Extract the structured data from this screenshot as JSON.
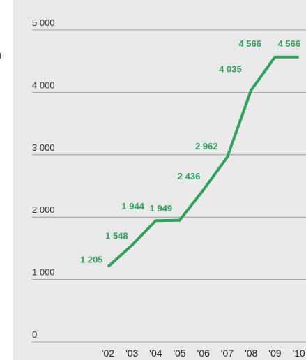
{
  "colors": {
    "panel_background": "#eaeaea",
    "line": "#2ea35b",
    "gridline": "#8c8c8c",
    "label": "#2ea35b"
  },
  "chart_data": {
    "type": "line",
    "title": "",
    "xlabel": "",
    "ylabel": "",
    "categories": [
      "'02",
      "'03",
      "'04",
      "'05",
      "'06",
      "'07",
      "'08",
      "'09",
      "'10"
    ],
    "values": [
      1205,
      1548,
      1944,
      1949,
      2436,
      2962,
      4035,
      4566,
      4566
    ],
    "data_labels": [
      "1 205",
      "1 548",
      "1 944",
      "1 949",
      "2 436",
      "2 962",
      "4 035",
      "4 566",
      "4 566"
    ],
    "y_ticks": [
      0,
      1000,
      2000,
      3000,
      4000,
      5000
    ],
    "y_tick_labels": [
      "0",
      "1 000",
      "2 000",
      "3 000",
      "4 000",
      "5 000"
    ],
    "ylim": [
      0,
      5000
    ],
    "grid": true,
    "legend": "none"
  }
}
